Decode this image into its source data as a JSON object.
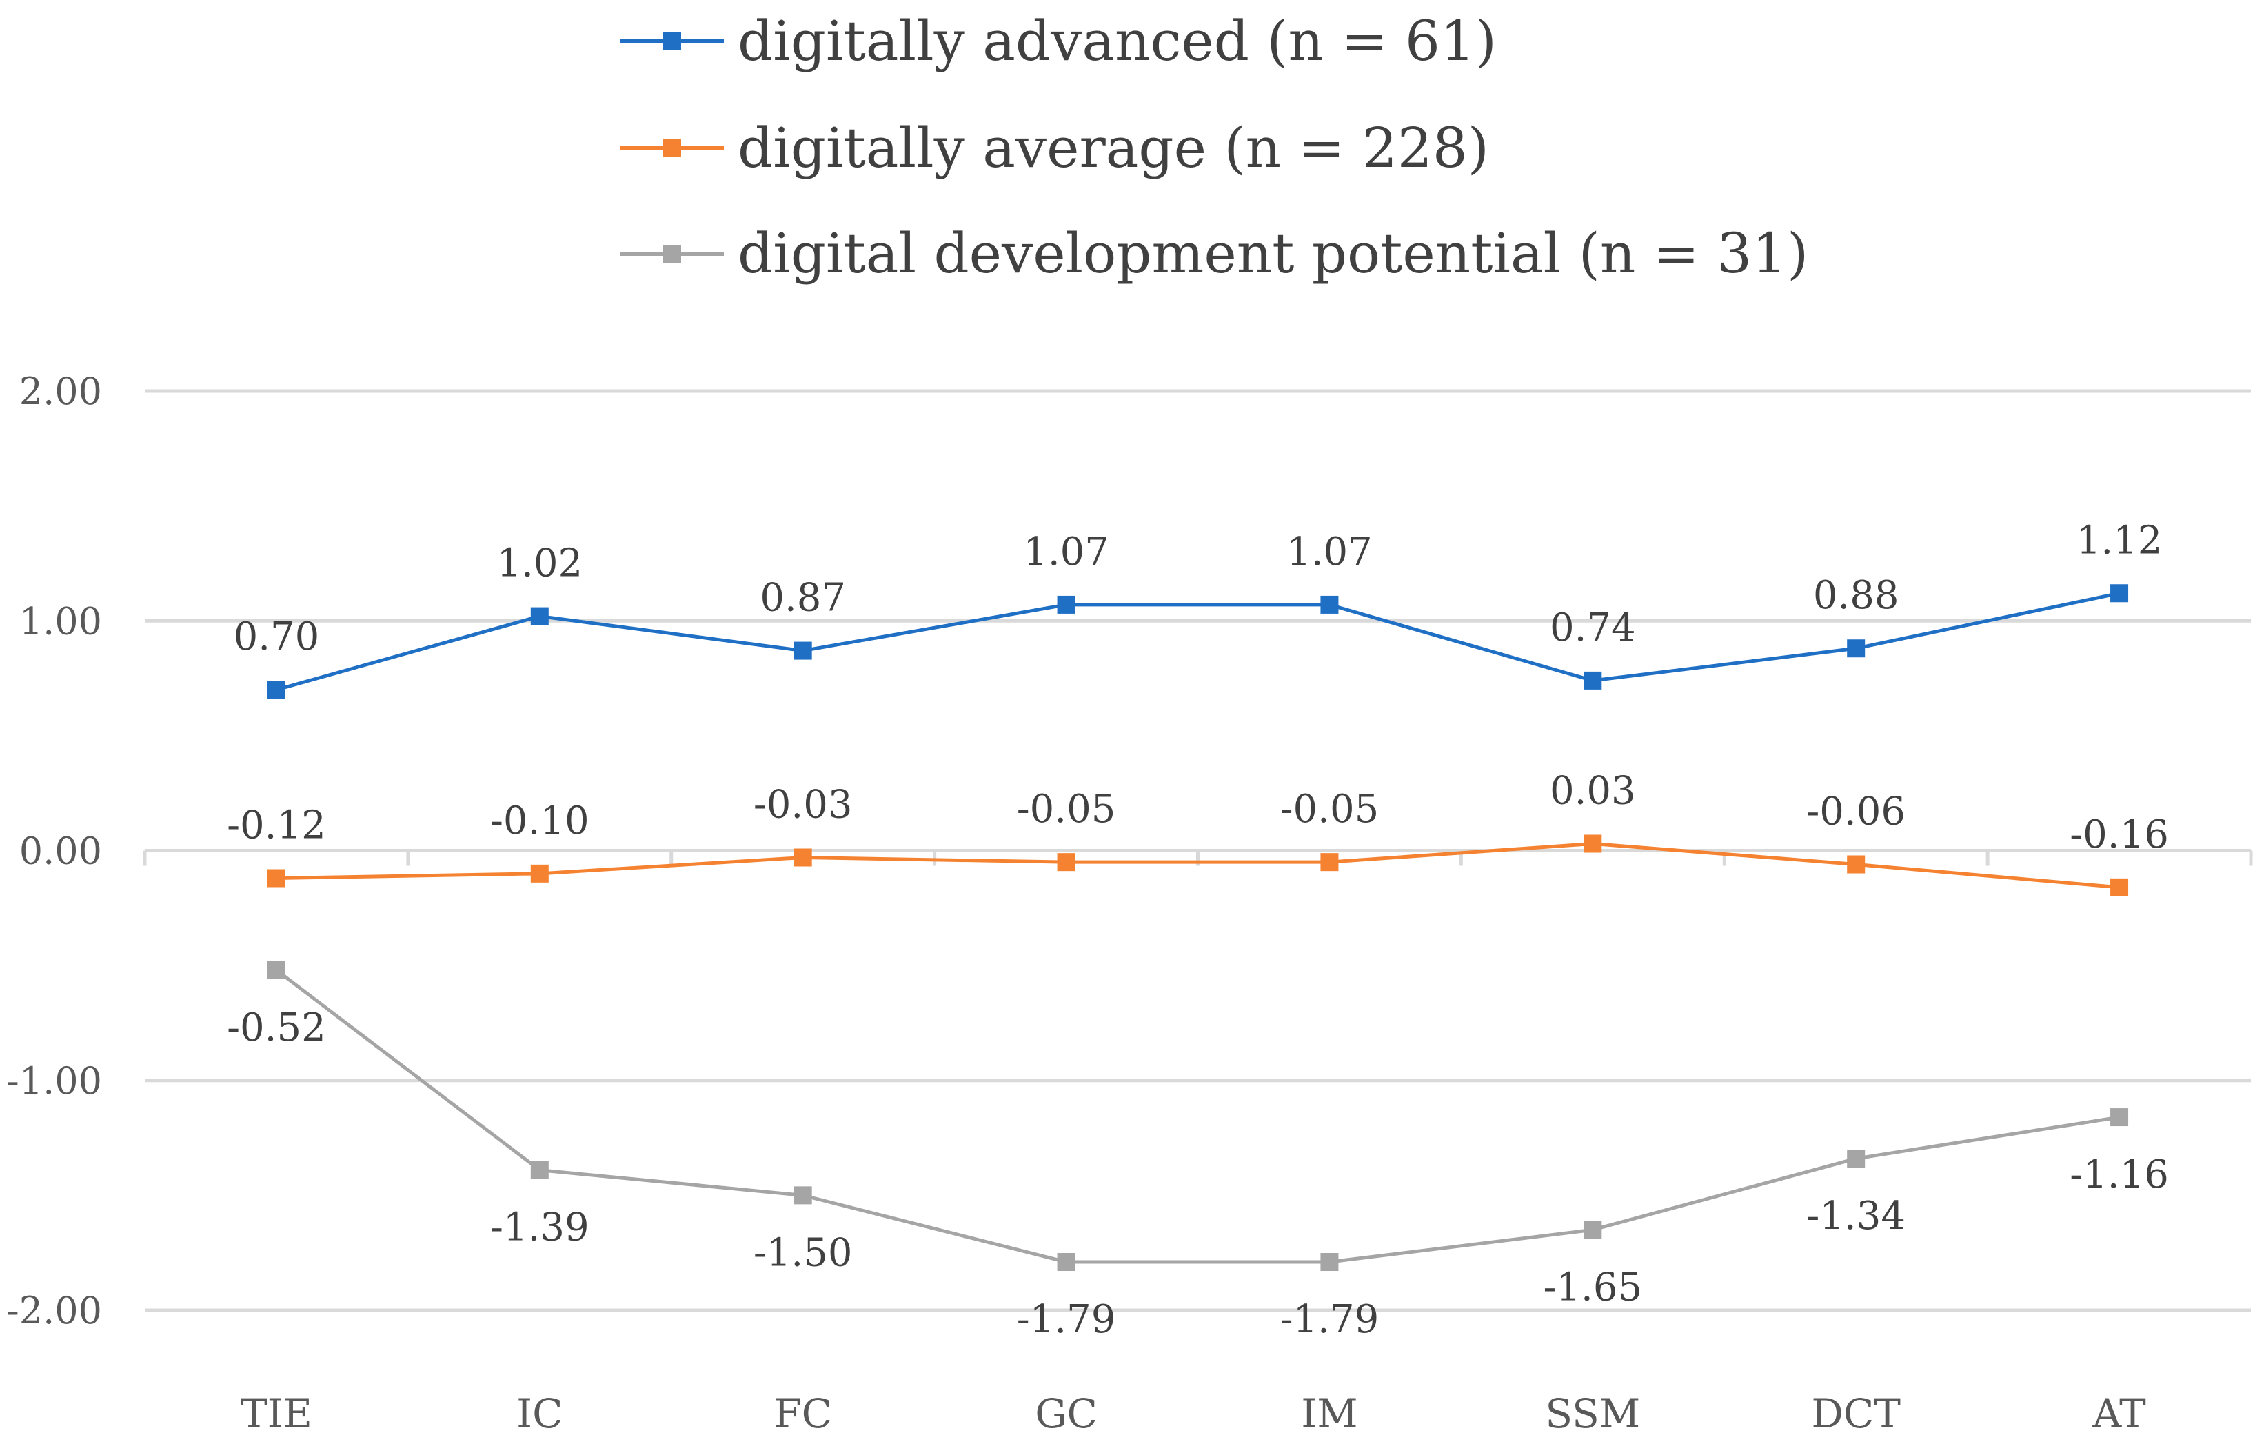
{
  "chart_data": {
    "type": "line",
    "title": "",
    "xlabel": "",
    "ylabel": "",
    "categories": [
      "TIE",
      "IC",
      "FC",
      "GC",
      "IM",
      "SSM",
      "DCT",
      "AT"
    ],
    "ylim": [
      -2.0,
      2.0
    ],
    "yticks": [
      2.0,
      1.0,
      0.0,
      -1.0,
      -2.0
    ],
    "ytick_labels": [
      "2.00",
      "1.00",
      "0.00",
      "-1.00",
      "-2.00"
    ],
    "grid": true,
    "legend_position": "top",
    "series": [
      {
        "name": "digitally advanced (n = 61)",
        "color": "#1f6fc5",
        "values": [
          0.7,
          1.02,
          0.87,
          1.07,
          1.07,
          0.74,
          0.88,
          1.12
        ],
        "labels": [
          "0.70",
          "1.02",
          "0.87",
          "1.07",
          "1.07",
          "0.74",
          "0.88",
          "1.12"
        ],
        "label_position": "above"
      },
      {
        "name": "digitally average (n = 228)",
        "color": "#f58231",
        "values": [
          -0.12,
          -0.1,
          -0.03,
          -0.05,
          -0.05,
          0.03,
          -0.06,
          -0.16
        ],
        "labels": [
          "-0.12",
          "-0.10",
          "-0.03",
          "-0.05",
          "-0.05",
          "0.03",
          "-0.06",
          "-0.16"
        ],
        "label_position": "above"
      },
      {
        "name": "digital development potential (n = 31)",
        "color": "#a5a5a5",
        "values": [
          -0.52,
          -1.39,
          -1.5,
          -1.79,
          -1.79,
          -1.65,
          -1.34,
          -1.16
        ],
        "labels": [
          "-0.52",
          "-1.39",
          "-1.50",
          "-1.79",
          "-1.79",
          "-1.65",
          "-1.34",
          "-1.16"
        ],
        "label_position": "below"
      }
    ]
  }
}
